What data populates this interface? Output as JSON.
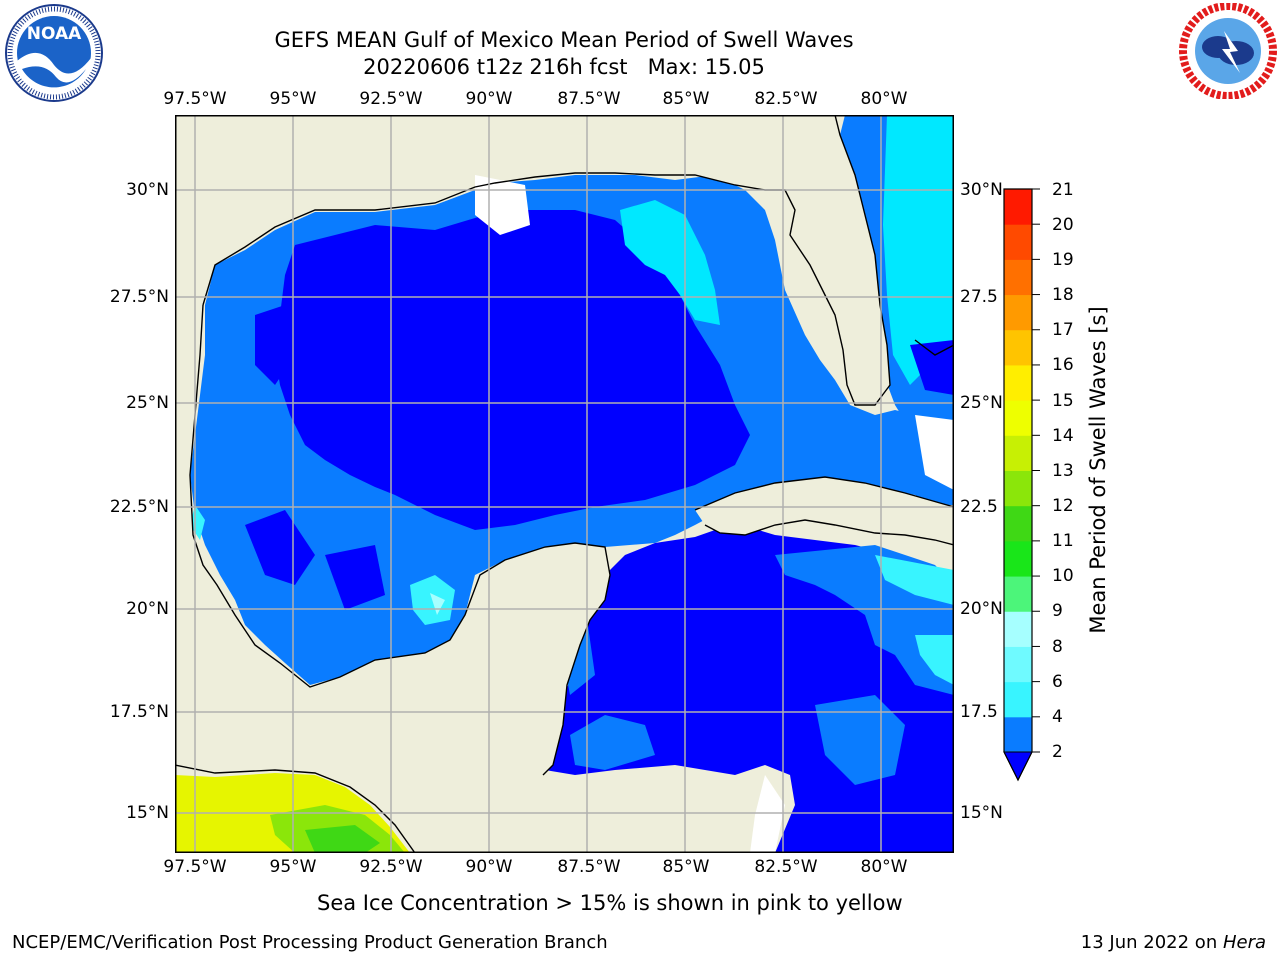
{
  "title_line1": "GEFS MEAN Gulf of Mexico Mean Period of Swell Waves",
  "title_line2": "20220606 t12z 216h fcst   Max: 15.05",
  "logos": {
    "left": {
      "text": "NOAA",
      "ring_text": "NATIONAL OCEANIC AND ATMOSPHERIC ADMINISTRATION · U.S. DEPARTMENT OF COMMERCE",
      "icon": "noaa-logo-icon"
    },
    "right": {
      "ring_text": "NATIONAL WEATHER SERVICE",
      "icon": "nws-logo-icon"
    }
  },
  "map": {
    "lon_labels": [
      "97.5°W",
      "95°W",
      "92.5°W",
      "90°W",
      "87.5°W",
      "85°W",
      "82.5°W",
      "80°W"
    ],
    "lat_labels_left": [
      "30°N",
      "27.5°N",
      "25°N",
      "22.5°N",
      "20°N",
      "17.5°N",
      "15°N"
    ],
    "lat_labels_right": [
      "30°N",
      "27.5",
      "25°N",
      "22.5",
      "20°N",
      "17.5",
      "15°N"
    ],
    "land_color": "#eeeedb",
    "grid": true,
    "grid_color": "#b0b0b0"
  },
  "colorbar": {
    "label": "Mean Period of Swell Waves [s]",
    "ticks": [
      "2",
      "4",
      "6",
      "8",
      "9",
      "10",
      "11",
      "12",
      "13",
      "14",
      "15",
      "16",
      "17",
      "18",
      "19",
      "20",
      "21"
    ],
    "colors": [
      "#0a7cff",
      "#00e8ff",
      "#38f4ff",
      "#6ffaff",
      "#a6ffff",
      "#4cf57a",
      "#19e619",
      "#3fd815",
      "#8be60a",
      "#c7f004",
      "#eeff00",
      "#ffee00",
      "#ffc400",
      "#ff9a00",
      "#ff7000",
      "#ff4a00",
      "#ff1a00"
    ],
    "extend_color": "#0000ff"
  },
  "note": "Sea Ice Concentration > 15% is shown in pink to yellow",
  "footer_left": "NCEP/EMC/Verification Post Processing Product Generation Branch",
  "footer_right_date": "13 Jun 2022 on ",
  "footer_right_host": "Hera"
}
